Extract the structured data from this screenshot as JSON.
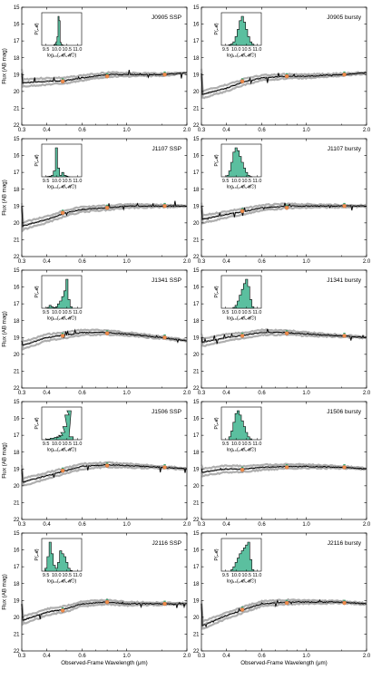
{
  "figure": {
    "ylabel": "Flux (AB mag)",
    "xlabel": "Observed-Frame Wavelength (μm)",
    "x_ticks": [
      "0.3",
      "0.4",
      "0.6",
      "1.0",
      "2.0"
    ],
    "y_ticks": [
      "15",
      "16",
      "17",
      "18",
      "19",
      "20",
      "21",
      "22"
    ],
    "inset_xlabel": "log₁₀(𝓜/𝓜☉)",
    "inset_ylabel": "P(𝓜)",
    "inset_ticks": [
      "9.5",
      "10.0",
      "10.5",
      "11.0"
    ]
  },
  "colors": {
    "sed_black": "#000000",
    "sed_gray": "#8c8c8c",
    "posterior_fill": "#5bbf9f",
    "photometry_orange": "#f08c4a",
    "photometry_green": "#39a36b"
  },
  "chart_data": [
    {
      "type": "line",
      "title": "J0905 SSP",
      "xscale": "log",
      "xlim": [
        0.3,
        2.0
      ],
      "ylim": [
        22,
        15
      ],
      "model_mag": [
        [
          0.3,
          19.5
        ],
        [
          0.4,
          19.4
        ],
        [
          0.5,
          19.35
        ],
        [
          0.6,
          19.2
        ],
        [
          0.8,
          19.0
        ],
        [
          1.0,
          19.0
        ],
        [
          1.5,
          19.0
        ],
        [
          2.0,
          18.9
        ]
      ],
      "photometry": [
        {
          "x": 0.48,
          "y": 19.4
        },
        {
          "x": 0.8,
          "y": 19.1
        },
        {
          "x": 1.55,
          "y": 19.0
        }
      ],
      "inset_hist": {
        "bins": [
          9.9,
          9.95,
          10.0,
          10.05,
          10.1,
          10.15,
          10.2,
          10.25,
          10.3,
          10.35
        ],
        "p": [
          0.02,
          0.05,
          0.12,
          0.3,
          1.0,
          0.85,
          0.1,
          0.03,
          0.01,
          0.0
        ]
      }
    },
    {
      "type": "line",
      "title": "J0905 bursty",
      "xscale": "log",
      "xlim": [
        0.3,
        2.0
      ],
      "ylim": [
        22,
        15
      ],
      "model_mag": [
        [
          0.3,
          20.2
        ],
        [
          0.4,
          19.8
        ],
        [
          0.5,
          19.4
        ],
        [
          0.6,
          19.2
        ],
        [
          0.8,
          19.1
        ],
        [
          1.0,
          19.1
        ],
        [
          1.5,
          19.0
        ],
        [
          2.0,
          18.9
        ]
      ],
      "photometry": [
        {
          "x": 0.48,
          "y": 19.4
        },
        {
          "x": 0.8,
          "y": 19.1
        },
        {
          "x": 1.55,
          "y": 19.0
        }
      ],
      "inset_hist": {
        "bins": [
          9.7,
          9.8,
          9.9,
          10.0,
          10.1,
          10.2,
          10.3,
          10.4,
          10.5,
          10.6,
          10.7,
          10.8
        ],
        "p": [
          0.02,
          0.05,
          0.12,
          0.3,
          0.55,
          0.85,
          1.0,
          0.8,
          0.55,
          0.3,
          0.12,
          0.04
        ]
      }
    },
    {
      "type": "line",
      "title": "J1107 SSP",
      "xscale": "log",
      "xlim": [
        0.3,
        2.0
      ],
      "ylim": [
        22,
        15
      ],
      "model_mag": [
        [
          0.3,
          20.2
        ],
        [
          0.4,
          19.8
        ],
        [
          0.5,
          19.4
        ],
        [
          0.6,
          19.2
        ],
        [
          0.8,
          19.1
        ],
        [
          1.0,
          19.0
        ],
        [
          1.5,
          19.0
        ],
        [
          2.0,
          19.0
        ]
      ],
      "photometry": [
        {
          "x": 0.48,
          "y": 19.4
        },
        {
          "x": 0.8,
          "y": 19.1
        },
        {
          "x": 1.55,
          "y": 19.0
        }
      ],
      "inset_hist": {
        "bins": [
          9.6,
          9.7,
          9.8,
          9.9,
          10.0,
          10.1,
          10.2,
          10.3,
          10.4,
          10.5,
          10.6
        ],
        "p": [
          0.01,
          0.02,
          0.05,
          0.2,
          1.0,
          0.3,
          0.05,
          0.15,
          0.05,
          0.02,
          0.0
        ]
      }
    },
    {
      "type": "line",
      "title": "J1107 bursty",
      "xscale": "log",
      "xlim": [
        0.3,
        2.0
      ],
      "ylim": [
        22,
        15
      ],
      "model_mag": [
        [
          0.3,
          19.8
        ],
        [
          0.4,
          19.5
        ],
        [
          0.5,
          19.3
        ],
        [
          0.6,
          19.1
        ],
        [
          0.8,
          19.0
        ],
        [
          1.0,
          19.0
        ],
        [
          1.5,
          19.0
        ],
        [
          2.0,
          19.0
        ]
      ],
      "photometry": [
        {
          "x": 0.48,
          "y": 19.3
        },
        {
          "x": 0.8,
          "y": 19.1
        },
        {
          "x": 1.55,
          "y": 19.0
        }
      ],
      "inset_hist": {
        "bins": [
          9.6,
          9.7,
          9.8,
          9.9,
          10.0,
          10.1,
          10.2,
          10.3,
          10.4,
          10.5,
          10.6,
          10.7
        ],
        "p": [
          0.05,
          0.2,
          0.5,
          0.85,
          1.0,
          0.9,
          0.7,
          0.5,
          0.3,
          0.15,
          0.05,
          0.01
        ]
      }
    },
    {
      "type": "line",
      "title": "J1341 SSP",
      "xscale": "log",
      "xlim": [
        0.3,
        2.0
      ],
      "ylim": [
        22,
        15
      ],
      "model_mag": [
        [
          0.3,
          19.5
        ],
        [
          0.4,
          19.0
        ],
        [
          0.5,
          18.85
        ],
        [
          0.6,
          18.7
        ],
        [
          0.8,
          18.7
        ],
        [
          1.0,
          18.8
        ],
        [
          1.5,
          19.0
        ],
        [
          2.0,
          19.2
        ]
      ],
      "photometry": [
        {
          "x": 0.48,
          "y": 18.9
        },
        {
          "x": 0.8,
          "y": 18.75
        },
        {
          "x": 1.55,
          "y": 19.0
        }
      ],
      "inset_hist": {
        "bins": [
          9.6,
          9.7,
          9.8,
          9.9,
          10.0,
          10.1,
          10.2,
          10.3,
          10.4,
          10.5,
          10.6,
          10.7
        ],
        "p": [
          0.03,
          0.1,
          0.05,
          0.02,
          0.05,
          0.15,
          0.25,
          0.4,
          0.6,
          1.0,
          0.3,
          0.05
        ]
      }
    },
    {
      "type": "line",
      "title": "J1341 bursty",
      "xscale": "log",
      "xlim": [
        0.3,
        2.0
      ],
      "ylim": [
        22,
        15
      ],
      "model_mag": [
        [
          0.3,
          19.3
        ],
        [
          0.4,
          19.0
        ],
        [
          0.5,
          18.85
        ],
        [
          0.6,
          18.7
        ],
        [
          0.8,
          18.7
        ],
        [
          1.0,
          18.8
        ],
        [
          1.5,
          18.9
        ],
        [
          2.0,
          19.0
        ]
      ],
      "photometry": [
        {
          "x": 0.48,
          "y": 18.9
        },
        {
          "x": 0.8,
          "y": 18.75
        },
        {
          "x": 1.55,
          "y": 18.9
        }
      ],
      "inset_hist": {
        "bins": [
          9.9,
          10.0,
          10.1,
          10.2,
          10.3,
          10.4,
          10.5,
          10.6,
          10.7,
          10.8
        ],
        "p": [
          0.03,
          0.1,
          0.25,
          0.45,
          0.65,
          0.85,
          1.0,
          0.75,
          0.3,
          0.05
        ]
      }
    },
    {
      "type": "line",
      "title": "J1506 SSP",
      "xscale": "log",
      "xlim": [
        0.3,
        2.0
      ],
      "ylim": [
        22,
        15
      ],
      "model_mag": [
        [
          0.3,
          19.8
        ],
        [
          0.4,
          19.4
        ],
        [
          0.5,
          19.1
        ],
        [
          0.6,
          18.85
        ],
        [
          0.8,
          18.75
        ],
        [
          1.0,
          18.8
        ],
        [
          1.5,
          18.9
        ],
        [
          2.0,
          19.0
        ]
      ],
      "photometry": [
        {
          "x": 0.48,
          "y": 19.1
        },
        {
          "x": 0.8,
          "y": 18.8
        },
        {
          "x": 1.55,
          "y": 18.9
        }
      ],
      "inset_hist": {
        "bins": [
          9.6,
          9.8,
          10.0,
          10.1,
          10.2,
          10.3,
          10.4,
          10.5,
          10.6,
          10.7
        ],
        "p": [
          0.02,
          0.05,
          0.08,
          0.1,
          0.15,
          0.25,
          0.45,
          0.85,
          1.0,
          0.1
        ]
      }
    },
    {
      "type": "line",
      "title": "J1506 bursty",
      "xscale": "log",
      "xlim": [
        0.3,
        2.0
      ],
      "ylim": [
        22,
        15
      ],
      "model_mag": [
        [
          0.3,
          19.2
        ],
        [
          0.4,
          19.0
        ],
        [
          0.5,
          19.0
        ],
        [
          0.6,
          18.9
        ],
        [
          0.8,
          18.85
        ],
        [
          1.0,
          18.85
        ],
        [
          1.5,
          18.9
        ],
        [
          2.0,
          19.0
        ]
      ],
      "photometry": [
        {
          "x": 0.48,
          "y": 19.05
        },
        {
          "x": 0.8,
          "y": 18.9
        },
        {
          "x": 1.55,
          "y": 18.9
        }
      ],
      "inset_hist": {
        "bins": [
          9.7,
          9.8,
          9.9,
          10.0,
          10.1,
          10.2,
          10.3,
          10.4,
          10.5,
          10.6,
          10.7
        ],
        "p": [
          0.1,
          0.3,
          0.6,
          0.9,
          1.0,
          0.85,
          0.65,
          0.45,
          0.25,
          0.1,
          0.03
        ]
      }
    },
    {
      "type": "line",
      "title": "J2116 SSP",
      "xscale": "log",
      "xlim": [
        0.3,
        2.0
      ],
      "ylim": [
        22,
        15
      ],
      "model_mag": [
        [
          0.3,
          20.2
        ],
        [
          0.4,
          19.7
        ],
        [
          0.5,
          19.5
        ],
        [
          0.6,
          19.2
        ],
        [
          0.8,
          19.1
        ],
        [
          1.0,
          19.2
        ],
        [
          1.5,
          19.2
        ],
        [
          2.0,
          19.2
        ]
      ],
      "photometry": [
        {
          "x": 0.48,
          "y": 19.6
        },
        {
          "x": 0.8,
          "y": 19.1
        },
        {
          "x": 1.55,
          "y": 19.2
        }
      ],
      "inset_hist": {
        "bins": [
          9.5,
          9.6,
          9.7,
          9.8,
          9.9,
          10.0,
          10.1,
          10.2,
          10.3,
          10.4,
          10.5,
          10.6,
          10.7
        ],
        "p": [
          0.1,
          0.5,
          1.0,
          0.6,
          0.2,
          0.1,
          0.3,
          0.7,
          0.6,
          0.5,
          0.3,
          0.1,
          0.02
        ]
      }
    },
    {
      "type": "line",
      "title": "J2116 bursty",
      "xscale": "log",
      "xlim": [
        0.3,
        2.0
      ],
      "ylim": [
        22,
        15
      ],
      "model_mag": [
        [
          0.3,
          20.5
        ],
        [
          0.4,
          19.9
        ],
        [
          0.5,
          19.5
        ],
        [
          0.6,
          19.2
        ],
        [
          0.8,
          19.1
        ],
        [
          1.0,
          19.1
        ],
        [
          1.5,
          19.1
        ],
        [
          2.0,
          19.2
        ]
      ],
      "photometry": [
        {
          "x": 0.48,
          "y": 19.55
        },
        {
          "x": 0.8,
          "y": 19.15
        },
        {
          "x": 1.55,
          "y": 19.15
        }
      ],
      "inset_hist": {
        "bins": [
          9.8,
          9.9,
          10.0,
          10.1,
          10.2,
          10.3,
          10.4,
          10.5,
          10.6,
          10.7,
          10.8
        ],
        "p": [
          0.05,
          0.15,
          0.3,
          0.45,
          0.6,
          0.7,
          0.8,
          0.9,
          1.0,
          0.4,
          0.05
        ]
      }
    }
  ]
}
